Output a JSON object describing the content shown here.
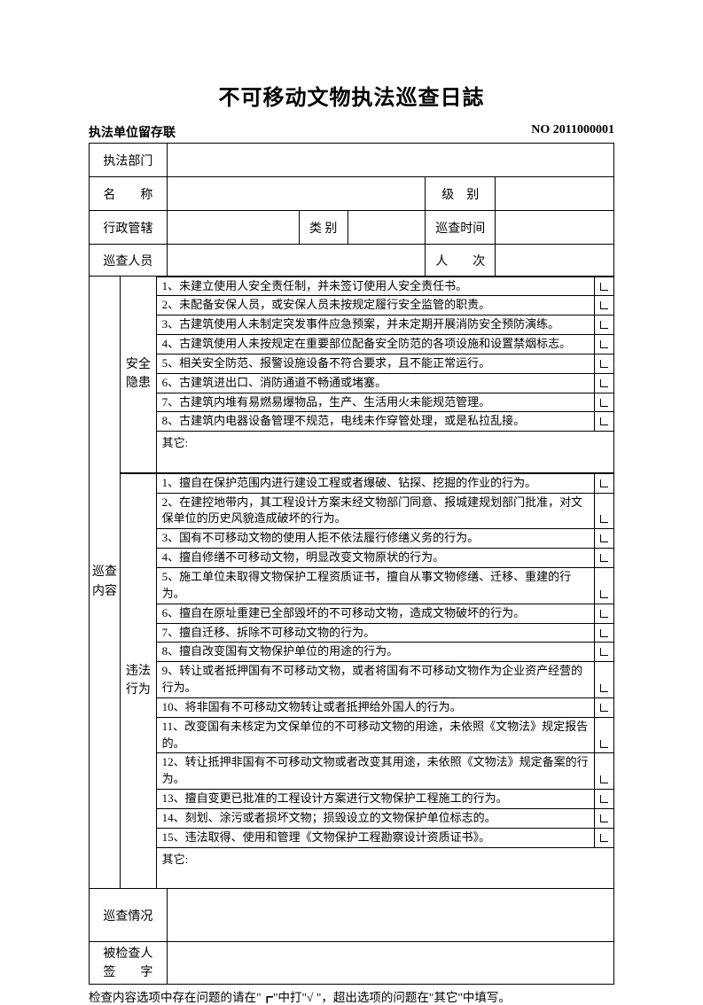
{
  "title": "不可移动文物执法巡查日誌",
  "subheader_left": "执法单位留存联",
  "subheader_right": "NO 2011000001",
  "rows": {
    "dept_label": "执法部门",
    "name_label": "名　　称",
    "level_label": "级　别",
    "admin_label": "行政管辖",
    "cat_label": "类 别",
    "time_label": "巡查时间",
    "people_label": "巡查人员",
    "count_label": "人　　次",
    "content_label_1": "巡查",
    "content_label_2": "内容",
    "safety_label_1": "安全",
    "safety_label_2": "隐患",
    "illegal_label_1": "违法",
    "illegal_label_2": "行为",
    "status_label": "巡查情况",
    "sig_label_1": "被检查人",
    "sig_label_2": "签　　字",
    "other_label": "其它:"
  },
  "safety_items": [
    "1、未建立使用人安全责任制，并未签订使用人安全责任书。",
    "2、未配备安保人员，或安保人员未按规定履行安全监管的职责。",
    "3、古建筑使用人未制定突发事件应急预案，并未定期开展消防安全预防演练。",
    "4、古建筑使用人未按规定在重要部位配备安全防范的各项设施和设置禁烟标志。",
    "5、相关安全防范、报警设施设备不符合要求，且不能正常运行。",
    "6、古建筑进出口、消防通道不畅通或堵塞。",
    "7、古建筑内堆有易燃易爆物品，生产、生活用火未能规范管理。",
    "8、古建筑内电器设备管理不规范，电线未作穿管处理，或是私拉乱接。"
  ],
  "illegal_items": [
    "1、擅自在保护范围内进行建设工程或者爆破、钻探、挖掘的作业的行为。",
    "2、在建控地带内，其工程设计方案未经文物部门同意、报城建规划部门批准，对文保单位的历史风貌造成破坏的行为。",
    "3、国有不可移动文物的使用人拒不依法履行修缮义务的行为。",
    "4、擅自修缮不可移动文物，明显改变文物原状的行为。",
    "5、施工单位未取得文物保护工程资质证书，擅自从事文物修缮、迁移、重建的行为。",
    "6、擅自在原址重建已全部毁坏的不可移动文物，造成文物破坏的行为。",
    "7、擅自迁移、拆除不可移动文物的行为。",
    "8、擅自改变国有文物保护单位的用途的行为。",
    "9、转让或者抵押国有不可移动文物，或者将国有不可移动文物作为企业资产经营的行为。",
    "10、将非国有不可移动文物转让或者抵押给外国人的行为。",
    "11、改变国有未核定为文保单位的不可移动文物的用途，未依照《文物法》规定报告的。",
    "12、转让抵押非国有不可移动文物或者改变其用途，未依照《文物法》规定备案的行为。",
    "13、擅自变更已批准的工程设计方案进行文物保护工程施工的行为。",
    "14、刻划、涂污或者损坏文物；损毁设立的文物保护单位标志的。",
    "15、违法取得、使用和管理《文物保护工程勘察设计资质证书》。"
  ],
  "footer": "检查内容选项中存在问题的请在\"┏\"中打\"√ \"，超出选项的问题在\"其它\"中填写。",
  "check_mark": "┏",
  "colors": {
    "background": "#ffffff",
    "text": "#000000",
    "border": "#000000"
  },
  "fontsize": {
    "title": 24,
    "subheader": 14,
    "label": 14,
    "item": 13,
    "footer": 13.5
  }
}
